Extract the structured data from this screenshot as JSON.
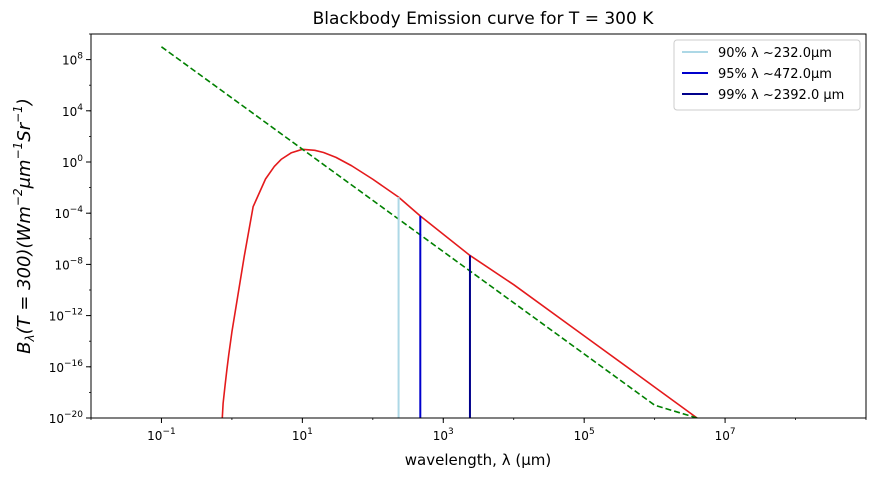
{
  "chart_data": {
    "type": "line",
    "title": "Blackbody Emission curve for T = 300 K",
    "xlabel": "wavelength, λ (μm)",
    "ylabel": {
      "symbol": "B",
      "symbol_subscript": "λ",
      "argument": "(T = 300)",
      "units_open": "(Wm",
      "units_exp1": "−2",
      "units_mid1": "μm",
      "units_exp2": "−1",
      "units_mid2": "Sr",
      "units_exp3": "−1",
      "units_close": ")"
    },
    "x_scale": "log",
    "y_scale": "log",
    "xlim": [
      0.01,
      1000000000
    ],
    "ylim": [
      1e-20,
      10000000000.0
    ],
    "x_ticks": [
      {
        "value": 0.1,
        "base": "10",
        "exp": "−1"
      },
      {
        "value": 10,
        "base": "10",
        "exp": "1"
      },
      {
        "value": 1000,
        "base": "10",
        "exp": "3"
      },
      {
        "value": 100000,
        "base": "10",
        "exp": "5"
      },
      {
        "value": 10000000,
        "base": "10",
        "exp": "7"
      }
    ],
    "y_ticks": [
      {
        "value": 1e-20,
        "base": "10",
        "exp": "−20"
      },
      {
        "value": 1e-16,
        "base": "10",
        "exp": "−16"
      },
      {
        "value": 1e-12,
        "base": "10",
        "exp": "−12"
      },
      {
        "value": 1e-08,
        "base": "10",
        "exp": "−8"
      },
      {
        "value": 0.0001,
        "base": "10",
        "exp": "−4"
      },
      {
        "value": 1,
        "base": "10",
        "exp": "0"
      },
      {
        "value": 10000,
        "base": "10",
        "exp": "4"
      },
      {
        "value": 100000000,
        "base": "10",
        "exp": "8"
      }
    ],
    "grid": false,
    "legend_position": "top-right",
    "series": [
      {
        "name": "",
        "style": "solid",
        "color": "#e41a1c",
        "x": [
          0.73,
          0.75,
          0.8,
          0.85,
          0.9,
          1,
          1.2,
          1.5,
          2,
          3,
          4,
          5,
          7,
          10,
          15,
          20,
          30,
          50,
          100,
          232,
          472,
          2392,
          10000,
          100000,
          1000000,
          4000000
        ],
        "y": [
          1e-20,
          1.4e-19,
          3.6e-18,
          6.5e-17,
          8.1e-16,
          5.3e-14,
          2.5e-11,
          4.6e-08,
          0.00032,
          0.047,
          0.45,
          1.6,
          5.3,
          9.8,
          8.2,
          5.5,
          2.3,
          0.51,
          0.045,
          0.0018,
          6e-05,
          5e-08,
          2.6e-10,
          2.6e-14,
          2.6e-18,
          1e-20
        ]
      },
      {
        "name": "",
        "style": "dashed",
        "color": "#008000",
        "x": [
          0.1,
          1,
          10,
          100,
          1000,
          10000,
          100000,
          1000000,
          4000000
        ],
        "y": [
          1000000000.0,
          100000.0,
          10,
          0.001,
          1e-07,
          1e-11,
          1e-15,
          1e-19,
          1e-20
        ]
      }
    ],
    "vertical_lines": [
      {
        "name": "90% λ ~232.0μm",
        "x": 232.0,
        "y_top": 0.0018,
        "color": "#add8e6"
      },
      {
        "name": "95% λ ~472.0μm",
        "x": 472.0,
        "y_top": 6e-05,
        "color": "#0000cd"
      },
      {
        "name": "99% λ ~2392.0 μm",
        "x": 2392.0,
        "y_top": 5e-08,
        "color": "#00008b"
      }
    ]
  }
}
